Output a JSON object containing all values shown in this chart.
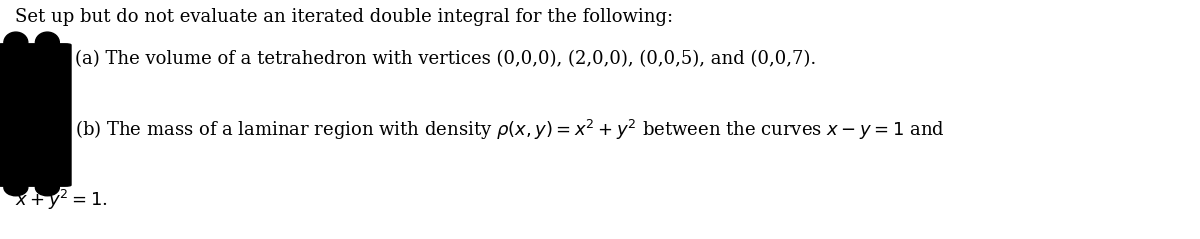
{
  "title_line": "Set up but do not evaluate an iterated double integral for the following:",
  "line_a": "(a) The volume of a tetrahedron with vertices (0,0,0), (2,0,0), (0,0,5), and (0,0,7).",
  "line_b_start": "(b) The mass of a laminar region with density $\\rho(x, y) = x^2 + y^2$ between the curves $x - y = 1$ and",
  "line_b_end": "$x + y^2 = 1$.",
  "bg_color": "#ffffff",
  "text_color": "#000000",
  "font_size": 13.0,
  "black_blob_color": "#000000",
  "figwidth": 12.0,
  "figheight": 2.39,
  "dpi": 100
}
